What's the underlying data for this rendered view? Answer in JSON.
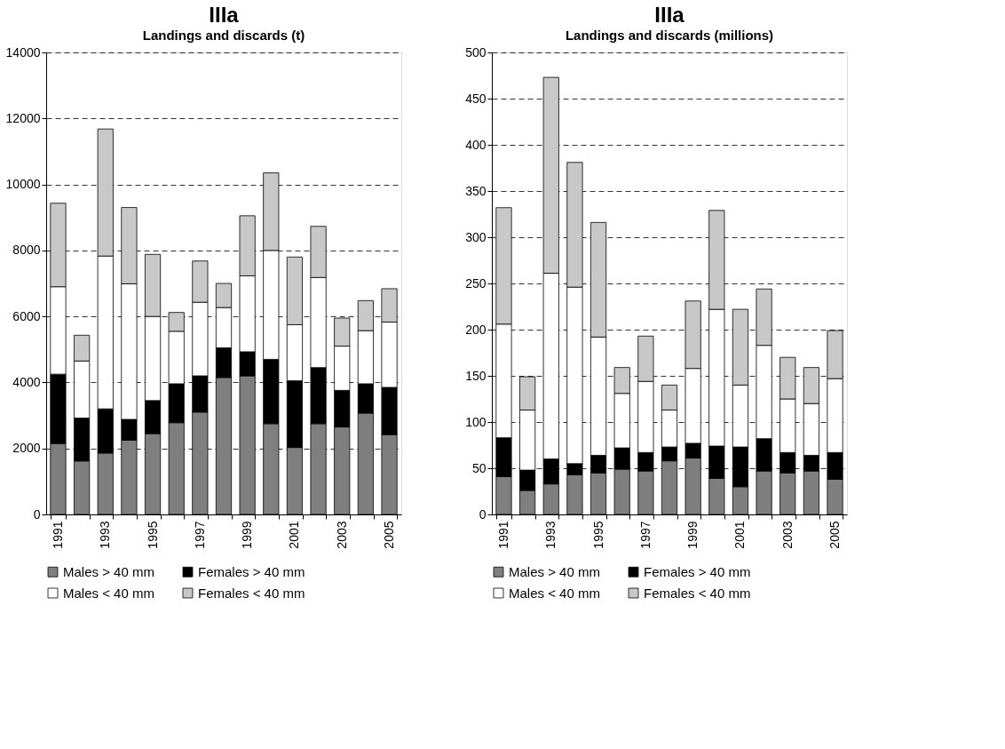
{
  "chart_data": [
    {
      "type": "bar",
      "stacked": true,
      "title": "IIIa",
      "subtitle": "Landings and discards (t)",
      "categories": [
        "1991",
        null,
        "1993",
        null,
        "1995",
        null,
        "1997",
        null,
        "1999",
        null,
        "2001",
        null,
        "2003",
        null,
        "2005"
      ],
      "series": [
        {
          "name": "Males > 40 mm",
          "color": "#7f7f7f",
          "values": [
            2150,
            1620,
            1860,
            2250,
            2450,
            2780,
            3100,
            4150,
            4200,
            2750,
            2030,
            2750,
            2650,
            3070,
            2420
          ]
        },
        {
          "name": "Females > 40 mm",
          "color": "#000000",
          "values": [
            2100,
            1300,
            1340,
            630,
            1000,
            1180,
            1100,
            900,
            730,
            1950,
            2020,
            1700,
            1110,
            890,
            1430
          ]
        },
        {
          "name": "Males < 40 mm",
          "color": "#ffffff",
          "values": [
            2650,
            1730,
            4630,
            4110,
            2550,
            1590,
            2230,
            1220,
            2300,
            3300,
            1700,
            2730,
            1340,
            1610,
            1980
          ]
        },
        {
          "name": "Females < 40 mm",
          "color": "#c8c8c8",
          "values": [
            2530,
            780,
            3850,
            2310,
            1880,
            570,
            1250,
            730,
            1820,
            2350,
            2050,
            1550,
            850,
            910,
            1010
          ]
        }
      ],
      "ylim": [
        0,
        14000
      ],
      "yticks": [
        0,
        2000,
        4000,
        6000,
        8000,
        10000,
        12000,
        14000
      ],
      "grid": "y",
      "legend": "bottom"
    },
    {
      "type": "bar",
      "stacked": true,
      "title": "IIIa",
      "subtitle": "Landings and discards (millions)",
      "categories": [
        "1991",
        null,
        "1993",
        null,
        "1995",
        null,
        "1997",
        null,
        "1999",
        null,
        "2001",
        null,
        "2003",
        null,
        "2005"
      ],
      "series": [
        {
          "name": "Males > 40 mm",
          "color": "#7f7f7f",
          "values": [
            41,
            26,
            33,
            43,
            45,
            49,
            47,
            58,
            61,
            39,
            30,
            47,
            45,
            47,
            38
          ]
        },
        {
          "name": "Females > 40 mm",
          "color": "#000000",
          "values": [
            42,
            22,
            27,
            12,
            19,
            23,
            20,
            15,
            16,
            35,
            43,
            35,
            22,
            17,
            29
          ]
        },
        {
          "name": "Males < 40 mm",
          "color": "#ffffff",
          "values": [
            123,
            65,
            201,
            191,
            128,
            59,
            77,
            40,
            81,
            148,
            67,
            101,
            58,
            56,
            80
          ]
        },
        {
          "name": "Females < 40 mm",
          "color": "#c8c8c8",
          "values": [
            126,
            36,
            212,
            135,
            124,
            28,
            49,
            27,
            73,
            107,
            82,
            61,
            45,
            39,
            52
          ]
        }
      ],
      "ylim": [
        0,
        500
      ],
      "yticks": [
        0,
        50,
        100,
        150,
        200,
        250,
        300,
        350,
        400,
        450,
        500
      ],
      "grid": "y",
      "legend": "bottom"
    }
  ]
}
